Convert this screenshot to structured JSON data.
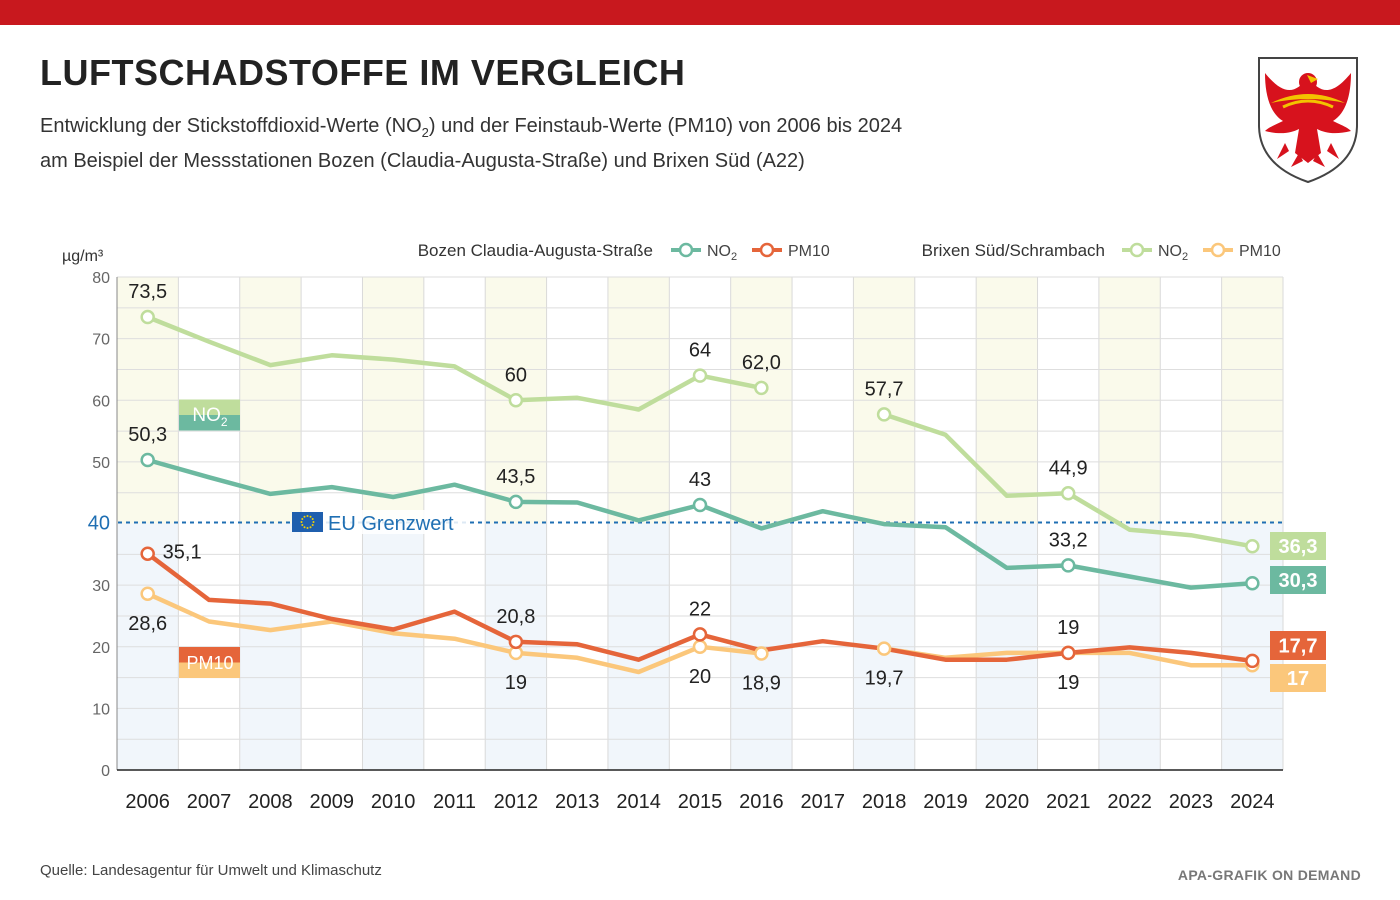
{
  "header": {
    "title": "LUFTSCHADSTOFFE IM VERGLEICH",
    "subtitle_line1_before": "Entwicklung der Stickstoffdioxid-Werte (NO",
    "subtitle_line1_sub": "2",
    "subtitle_line1_after": ") und der Feinstaub-Werte (PM10) von 2006 bis 2024",
    "subtitle_line2": "am Beispiel der Messstationen Bozen (Claudia-Augusta-Straße) und Brixen Süd (A22)"
  },
  "footer": {
    "source": "Quelle: Landesagentur für Umwelt und Klimaschutz",
    "credit": "APA-GRAFIK ON DEMAND"
  },
  "legend": {
    "group1": "Bozen Claudia-Augusta-Straße",
    "group2": "Brixen Süd/Schrambach",
    "no2_main": "NO",
    "no2_sub": "2",
    "pm10": "PM10"
  },
  "colors": {
    "bozen_no2": "#6cb9a0",
    "bozen_pm10": "#e5653a",
    "brixen_no2": "#bfdd9c",
    "brixen_pm10": "#fbc77b",
    "limit_line": "#1f6fb3",
    "band_no2": "#fafaeb",
    "band_pm10": "#f1f6fb",
    "red_bar": "#c8181e"
  },
  "chart_data": {
    "type": "line",
    "ylabel": "µg/m³",
    "ylim": [
      0,
      80
    ],
    "yticks": [
      0,
      10,
      20,
      30,
      40,
      50,
      60,
      70,
      80
    ],
    "x": [
      2006,
      2007,
      2008,
      2009,
      2010,
      2011,
      2012,
      2013,
      2014,
      2015,
      2016,
      2017,
      2018,
      2019,
      2020,
      2021,
      2022,
      2023,
      2024
    ],
    "reference_line": {
      "value": 40,
      "tick_label": "40",
      "label": "EU Grenzwert"
    },
    "band_labels": {
      "no2_main": "NO",
      "no2_sub": "2",
      "pm10": "PM10"
    },
    "series": [
      {
        "key": "brixen_no2",
        "values": [
          73.5,
          69.5,
          65.7,
          67.3,
          66.6,
          65.5,
          60,
          60.4,
          58.5,
          64,
          62.0,
          null,
          57.7,
          54.4,
          44.5,
          44.9,
          39,
          38.1,
          36.3
        ],
        "markers": [
          2006,
          2012,
          2015,
          2016,
          2018,
          2021,
          2024
        ],
        "data_labels": [
          {
            "x": 2006,
            "text": "73,5",
            "pos": "above"
          },
          {
            "x": 2012,
            "text": "60",
            "pos": "above"
          },
          {
            "x": 2015,
            "text": "64",
            "pos": "above"
          },
          {
            "x": 2016,
            "text": "62,0",
            "pos": "above"
          },
          {
            "x": 2018,
            "text": "57,7",
            "pos": "above"
          },
          {
            "x": 2021,
            "text": "44,9",
            "pos": "above"
          }
        ],
        "end_label": "36,3"
      },
      {
        "key": "bozen_no2",
        "values": [
          50.3,
          47.5,
          44.8,
          45.9,
          44.3,
          46.3,
          43.5,
          43.4,
          40.5,
          43,
          39.2,
          42,
          39.9,
          39.4,
          32.8,
          33.2,
          31.4,
          29.6,
          30.3
        ],
        "markers": [
          2006,
          2012,
          2015,
          2021,
          2024
        ],
        "data_labels": [
          {
            "x": 2006,
            "text": "50,3",
            "pos": "above"
          },
          {
            "x": 2012,
            "text": "43,5",
            "pos": "above"
          },
          {
            "x": 2015,
            "text": "43",
            "pos": "above"
          },
          {
            "x": 2021,
            "text": "33,2",
            "pos": "above"
          }
        ],
        "end_label": "30,3"
      },
      {
        "key": "bozen_pm10",
        "values": [
          35.1,
          27.6,
          27.0,
          24.5,
          22.8,
          25.7,
          20.8,
          20.4,
          17.9,
          22,
          19.4,
          20.9,
          19.7,
          17.9,
          17.9,
          19,
          19.9,
          19.0,
          17.7
        ],
        "markers": [
          2006,
          2012,
          2015,
          2021,
          2024
        ],
        "data_labels": [
          {
            "x": 2006,
            "text": "35,1",
            "pos": "right"
          },
          {
            "x": 2012,
            "text": "20,8",
            "pos": "above"
          },
          {
            "x": 2015,
            "text": "22",
            "pos": "above"
          },
          {
            "x": 2021,
            "text": "19",
            "pos": "above"
          }
        ],
        "end_label": "17,7"
      },
      {
        "key": "brixen_pm10",
        "values": [
          28.6,
          24.1,
          22.7,
          24.1,
          22.2,
          21.3,
          19,
          18.2,
          15.9,
          20,
          18.9,
          null,
          19.7,
          18.2,
          19.0,
          19,
          19.0,
          17.0,
          17
        ],
        "markers": [
          2006,
          2012,
          2015,
          2016,
          2018,
          2021,
          2024
        ],
        "data_labels": [
          {
            "x": 2006,
            "text": "28,6",
            "pos": "below"
          },
          {
            "x": 2012,
            "text": "19",
            "pos": "below"
          },
          {
            "x": 2015,
            "text": "20",
            "pos": "below"
          },
          {
            "x": 2016,
            "text": "18,9",
            "pos": "below"
          },
          {
            "x": 2018,
            "text": "19,7",
            "pos": "below"
          },
          {
            "x": 2021,
            "text": "19",
            "pos": "below"
          }
        ],
        "end_label": "17"
      }
    ]
  }
}
